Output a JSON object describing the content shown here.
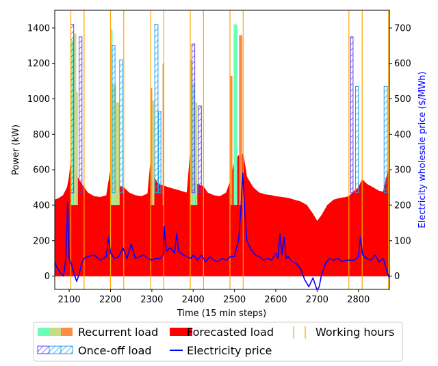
{
  "chart_data": {
    "type": "area",
    "xlabel": "Time (15 min steps)",
    "ylabel_left": "Power (kW)",
    "ylabel_right": "Electricity wholesale price ($/MWh)",
    "xlim": [
      2065,
      2875
    ],
    "ylim_left": [
      -75,
      1500
    ],
    "ylim_right": [
      -37.5,
      750
    ],
    "xticks": [
      2100,
      2200,
      2300,
      2400,
      2500,
      2600,
      2700,
      2800
    ],
    "yticks_left": [
      0,
      200,
      400,
      600,
      800,
      1000,
      1200,
      1400
    ],
    "yticks_right": [
      0,
      100,
      200,
      300,
      400,
      500,
      600,
      700
    ],
    "colors": {
      "forecast": "#ff0000",
      "price": "#0000ff",
      "working_hours": "#ffa500",
      "recurrent": [
        "#6affb7",
        "#c6dd83",
        "#ff8b44"
      ],
      "onceoff": [
        "#5e3cf0",
        "#1f9fea"
      ]
    },
    "working_hours": [
      2104,
      2136,
      2200,
      2232,
      2297,
      2329,
      2393,
      2425,
      2489,
      2521,
      2777,
      2809,
      2873
    ],
    "forecasted_load": {
      "x": [
        2065,
        2075,
        2085,
        2095,
        2100,
        2104,
        2110,
        2120,
        2130,
        2136,
        2145,
        2160,
        2175,
        2190,
        2200,
        2210,
        2220,
        2232,
        2245,
        2260,
        2275,
        2290,
        2297,
        2305,
        2315,
        2329,
        2340,
        2355,
        2370,
        2385,
        2393,
        2400,
        2410,
        2425,
        2435,
        2450,
        2465,
        2480,
        2489,
        2500,
        2510,
        2521,
        2530,
        2545,
        2560,
        2575,
        2590,
        2600,
        2615,
        2630,
        2645,
        2660,
        2675,
        2690,
        2700,
        2710,
        2725,
        2740,
        2755,
        2770,
        2777,
        2790,
        2800,
        2809,
        2820,
        2835,
        2850,
        2860,
        2870,
        2875
      ],
      "y": [
        430,
        440,
        455,
        500,
        560,
        650,
        620,
        560,
        520,
        500,
        470,
        450,
        445,
        455,
        600,
        560,
        510,
        500,
        470,
        455,
        450,
        465,
        650,
        560,
        520,
        510,
        500,
        490,
        480,
        470,
        700,
        560,
        520,
        505,
        470,
        455,
        450,
        470,
        530,
        650,
        680,
        690,
        560,
        500,
        470,
        460,
        455,
        450,
        445,
        440,
        430,
        420,
        400,
        350,
        310,
        340,
        400,
        430,
        440,
        445,
        450,
        480,
        500,
        545,
        520,
        500,
        480,
        475,
        580,
        600
      ]
    },
    "electricity_price": {
      "x": [
        2065,
        2070,
        2078,
        2086,
        2092,
        2096,
        2100,
        2106,
        2112,
        2118,
        2124,
        2130,
        2136,
        2145,
        2160,
        2175,
        2190,
        2195,
        2200,
        2210,
        2220,
        2230,
        2240,
        2250,
        2260,
        2270,
        2280,
        2290,
        2300,
        2310,
        2320,
        2328,
        2330,
        2335,
        2345,
        2355,
        2360,
        2365,
        2375,
        2385,
        2395,
        2400,
        2410,
        2420,
        2430,
        2440,
        2450,
        2460,
        2470,
        2480,
        2490,
        2500,
        2505,
        2510,
        2515,
        2520,
        2525,
        2530,
        2540,
        2550,
        2560,
        2570,
        2580,
        2590,
        2600,
        2605,
        2610,
        2615,
        2620,
        2625,
        2630,
        2640,
        2650,
        2660,
        2670,
        2680,
        2690,
        2700,
        2705,
        2710,
        2720,
        2730,
        2740,
        2750,
        2760,
        2770,
        2780,
        2790,
        2800,
        2805,
        2810,
        2820,
        2830,
        2840,
        2850,
        2860,
        2865,
        2870,
        2875
      ],
      "y": [
        40,
        25,
        10,
        0,
        50,
        210,
        50,
        30,
        5,
        -15,
        5,
        35,
        50,
        55,
        60,
        45,
        55,
        110,
        65,
        50,
        55,
        80,
        50,
        90,
        50,
        55,
        60,
        50,
        45,
        50,
        50,
        60,
        140,
        70,
        80,
        65,
        120,
        70,
        60,
        55,
        50,
        60,
        45,
        60,
        40,
        55,
        45,
        40,
        50,
        45,
        55,
        55,
        80,
        100,
        180,
        290,
        180,
        100,
        75,
        60,
        55,
        45,
        50,
        45,
        65,
        50,
        120,
        60,
        110,
        50,
        55,
        40,
        35,
        20,
        -10,
        -30,
        -5,
        -40,
        -30,
        0,
        35,
        50,
        45,
        50,
        40,
        45,
        45,
        45,
        55,
        110,
        60,
        50,
        45,
        60,
        40,
        50,
        30,
        10,
        -5
      ]
    },
    "recurrent_load": [
      {
        "x0": 2103,
        "x1": 2110,
        "y": 1330,
        "color": "#6affb7"
      },
      {
        "x0": 2110,
        "x1": 2117,
        "y": 1370,
        "color": "#c6dd83"
      },
      {
        "x0": 2117,
        "x1": 2121,
        "y": 1040,
        "color": "#c6dd83"
      },
      {
        "x0": 2200,
        "x1": 2205,
        "y": 1390,
        "color": "#6affb7"
      },
      {
        "x0": 2205,
        "x1": 2214,
        "y": 1080,
        "color": "#c6dd83"
      },
      {
        "x0": 2214,
        "x1": 2222,
        "y": 980,
        "color": "#c6dd83"
      },
      {
        "x0": 2296,
        "x1": 2301,
        "y": 1060,
        "color": "#ff8b44"
      },
      {
        "x0": 2301,
        "x1": 2306,
        "y": 990,
        "color": "#c6dd83"
      },
      {
        "x0": 2326,
        "x1": 2330,
        "y": 1200,
        "color": "#ff8b44"
      },
      {
        "x0": 2393,
        "x1": 2399,
        "y": 1220,
        "color": "#c6dd83"
      },
      {
        "x0": 2399,
        "x1": 2405,
        "y": 1090,
        "color": "#6affb7"
      },
      {
        "x0": 2405,
        "x1": 2410,
        "y": 980,
        "color": "#c6dd83"
      },
      {
        "x0": 2489,
        "x1": 2495,
        "y": 1130,
        "color": "#ff8b44"
      },
      {
        "x0": 2498,
        "x1": 2507,
        "y": 1420,
        "color": "#6affb7"
      },
      {
        "x0": 2511,
        "x1": 2519,
        "y": 1360,
        "color": "#ff8b44"
      }
    ],
    "onceoff_load": [
      {
        "x0": 2104,
        "x1": 2111,
        "y": 1420,
        "color": "#5e3cf0"
      },
      {
        "x0": 2124,
        "x1": 2131,
        "y": 1350,
        "color": "#5e3cf0"
      },
      {
        "x0": 2204,
        "x1": 2211,
        "y": 1300,
        "color": "#1f9fea"
      },
      {
        "x0": 2222,
        "x1": 2229,
        "y": 1220,
        "color": "#1f9fea"
      },
      {
        "x0": 2307,
        "x1": 2315,
        "y": 1420,
        "color": "#1f9fea"
      },
      {
        "x0": 2316,
        "x1": 2322,
        "y": 930,
        "color": "#1f9fea"
      },
      {
        "x0": 2397,
        "x1": 2404,
        "y": 1310,
        "color": "#5e3cf0"
      },
      {
        "x0": 2412,
        "x1": 2420,
        "y": 960,
        "color": "#5e3cf0"
      },
      {
        "x0": 2781,
        "x1": 2787,
        "y": 1350,
        "color": "#5e3cf0"
      },
      {
        "x0": 2793,
        "x1": 2800,
        "y": 1070,
        "color": "#1f9fea"
      },
      {
        "x0": 2862,
        "x1": 2870,
        "y": 1070,
        "color": "#1f9fea"
      }
    ]
  },
  "legend": {
    "recurrent_label": "Recurrent load",
    "forecast_label": "Forecasted load",
    "working_label": "Working hours",
    "onceoff_label": "Once-off load",
    "price_label": "Electricity price"
  }
}
